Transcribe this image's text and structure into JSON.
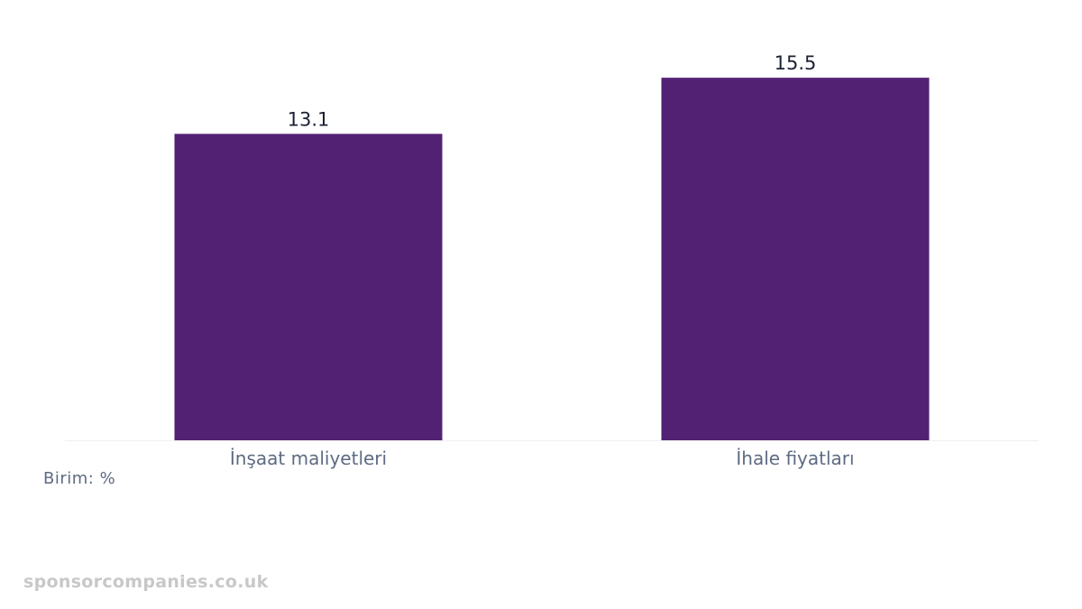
{
  "chart_data": {
    "type": "bar",
    "categories": [
      "İnşaat maliyetleri",
      "İhale fiyatları"
    ],
    "values": [
      13.1,
      15.5
    ],
    "value_labels": [
      "13.1",
      "15.5"
    ],
    "ylim": [
      0,
      16.2
    ],
    "grid": false,
    "bar_color": "#532174"
  },
  "unit_note": "Birim: %",
  "watermark": "sponsorcompanies.co.uk"
}
